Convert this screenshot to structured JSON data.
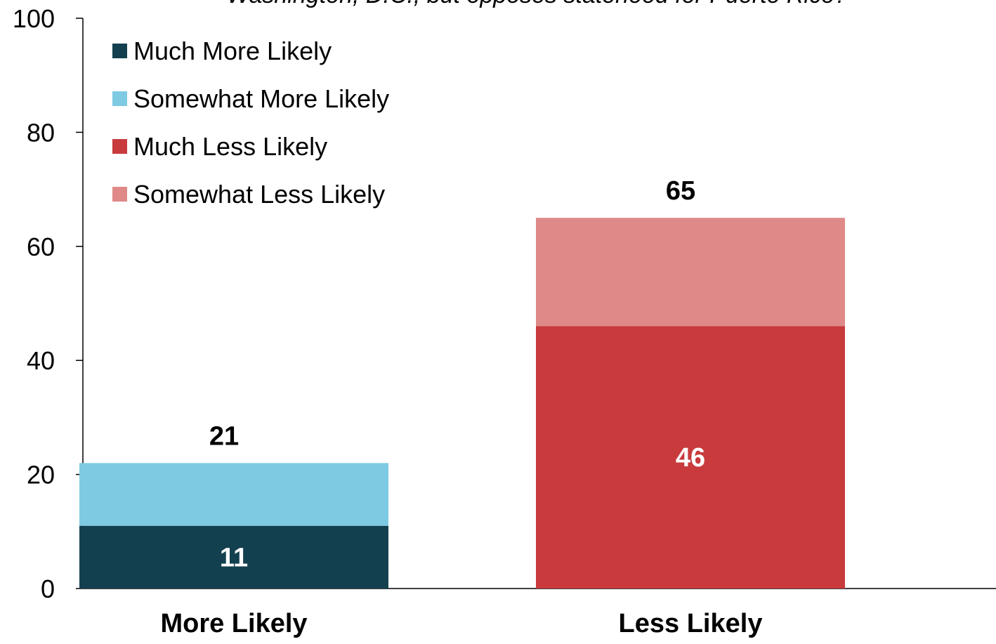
{
  "subtitle": "Washington, D.C., but opposes statehood for Puerto Rico?",
  "colors": {
    "much_more": "#13404f",
    "somewhat_more": "#7ecae3",
    "much_less": "#c83a3c",
    "somewhat_less": "#df8a88"
  },
  "chart_data": {
    "type": "bar",
    "stacked": true,
    "categories": [
      "More Likely",
      "Less Likely"
    ],
    "ylim": [
      0,
      100
    ],
    "yticks": [
      0,
      20,
      40,
      60,
      80,
      100
    ],
    "legend_position": "top-left",
    "grid": false,
    "series": [
      {
        "name": "Much More Likely",
        "color_key": "much_more",
        "values": [
          11,
          0
        ],
        "labels": [
          "11",
          ""
        ]
      },
      {
        "name": "Somewhat More Likely",
        "color_key": "somewhat_more",
        "values": [
          11,
          0
        ],
        "labels": [
          "",
          ""
        ]
      },
      {
        "name": "Much Less Likely",
        "color_key": "much_less",
        "values": [
          0,
          46
        ],
        "labels": [
          "",
          "46"
        ]
      },
      {
        "name": "Somewhat Less Likely",
        "color_key": "somewhat_less",
        "values": [
          0,
          19
        ],
        "labels": [
          "",
          ""
        ]
      }
    ],
    "totals": [
      "21",
      "65"
    ]
  }
}
